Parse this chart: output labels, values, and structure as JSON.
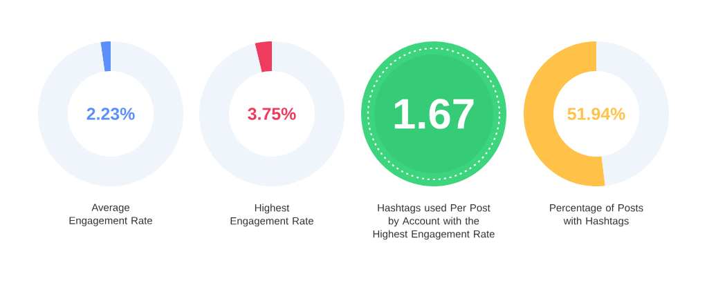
{
  "chart_data": [
    {
      "type": "donut",
      "title": "Average Engagement Rate",
      "categories": [
        null,
        null
      ],
      "values": [
        2.23,
        97.77
      ],
      "colors": [
        "#5b8ff9",
        "#eff5fa"
      ],
      "annotations": [
        "2.23%"
      ]
    },
    {
      "type": "donut",
      "title": "Highest Engagement Rate",
      "categories": [
        null,
        null
      ],
      "values": [
        3.75,
        96.25
      ],
      "colors": [
        "#ef3b5d",
        "#eff5fa"
      ],
      "annotations": [
        "3.75%"
      ]
    },
    {
      "type": "other",
      "title": "Hashtags used Per Post by Account with the Highest Engagement Rate",
      "annotations": [
        "1.67"
      ]
    },
    {
      "type": "donut",
      "title": "Percentage of Posts with Hashtags",
      "categories": [
        null,
        null
      ],
      "values": [
        51.94,
        48.06
      ],
      "colors": [
        "#ffc147",
        "#eff5fa"
      ],
      "annotations": [
        "51.94%"
      ]
    }
  ]
}
